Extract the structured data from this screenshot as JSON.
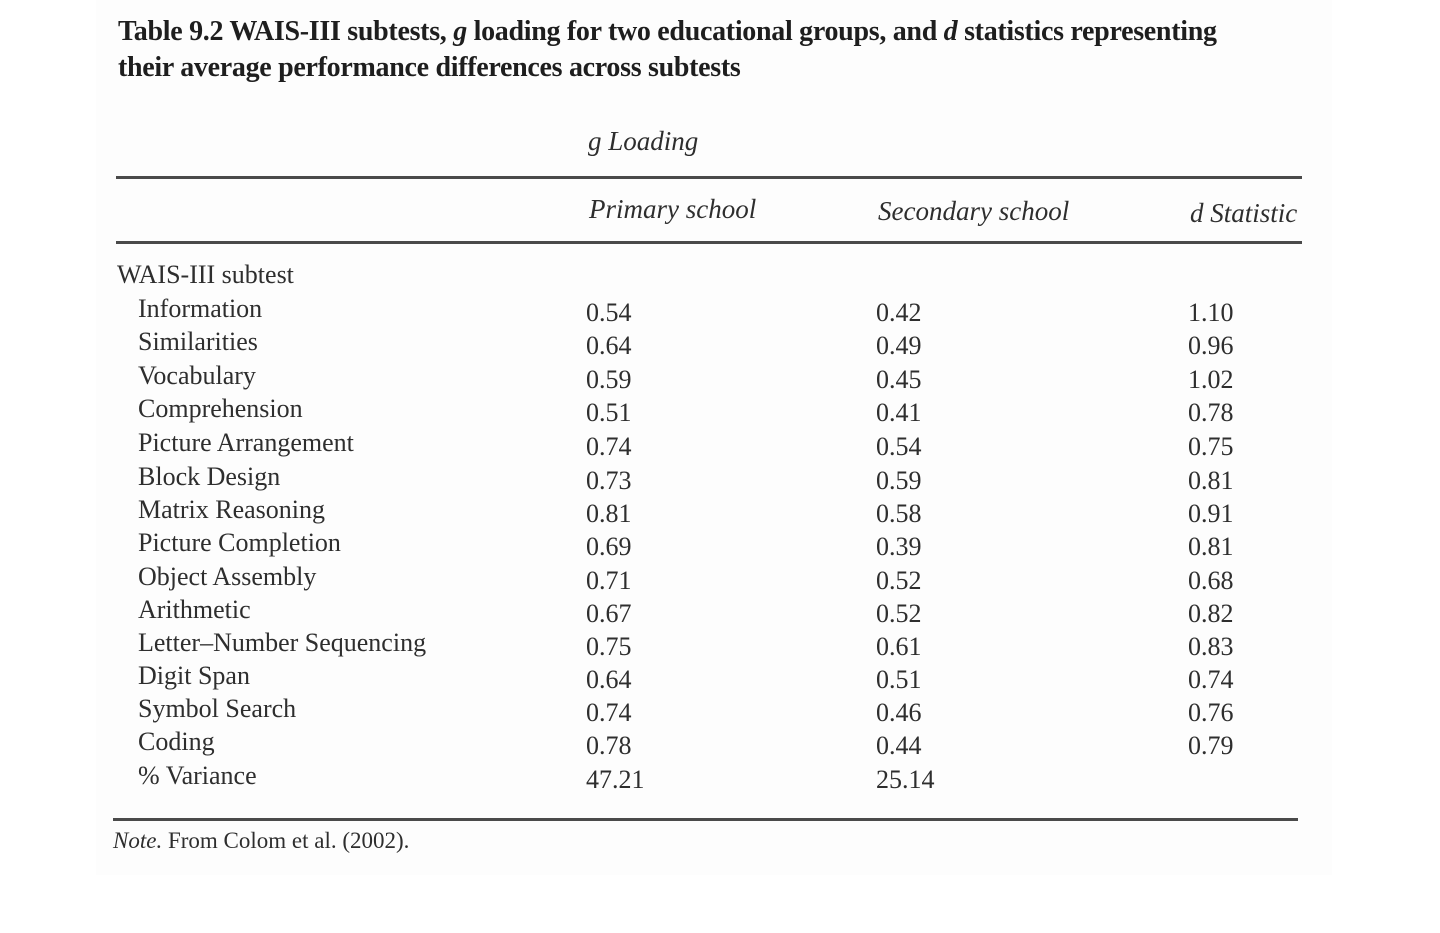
{
  "caption": {
    "prefix": "Table 9.2 WAIS-III subtests, ",
    "g": "g",
    "middle": " loading for two educational groups, and ",
    "d": "d",
    "suffix": " statistics representing their average performance differences across subtests"
  },
  "header": {
    "group_label": "g Loading",
    "col_primary": "Primary school",
    "col_secondary": "Secondary school",
    "col_d": "d Statistic"
  },
  "section_label": "WAIS-III subtest",
  "rows": [
    {
      "name": "Information",
      "primary": "0.54",
      "secondary": "0.42",
      "d": "1.10"
    },
    {
      "name": "Similarities",
      "primary": "0.64",
      "secondary": "0.49",
      "d": "0.96"
    },
    {
      "name": "Vocabulary",
      "primary": "0.59",
      "secondary": "0.45",
      "d": "1.02"
    },
    {
      "name": "Comprehension",
      "primary": "0.51",
      "secondary": "0.41",
      "d": "0.78"
    },
    {
      "name": "Picture Arrangement",
      "primary": "0.74",
      "secondary": "0.54",
      "d": "0.75"
    },
    {
      "name": "Block Design",
      "primary": "0.73",
      "secondary": "0.59",
      "d": "0.81"
    },
    {
      "name": "Matrix Reasoning",
      "primary": "0.81",
      "secondary": "0.58",
      "d": "0.91"
    },
    {
      "name": "Picture Completion",
      "primary": "0.69",
      "secondary": "0.39",
      "d": "0.81"
    },
    {
      "name": "Object Assembly",
      "primary": "0.71",
      "secondary": "0.52",
      "d": "0.68"
    },
    {
      "name": "Arithmetic",
      "primary": "0.67",
      "secondary": "0.52",
      "d": "0.82"
    },
    {
      "name": "Letter–Number Sequencing",
      "primary": "0.75",
      "secondary": "0.61",
      "d": "0.83"
    },
    {
      "name": "Digit Span",
      "primary": "0.64",
      "secondary": "0.51",
      "d": "0.74"
    },
    {
      "name": "Symbol Search",
      "primary": "0.74",
      "secondary": "0.46",
      "d": "0.76"
    },
    {
      "name": "Coding",
      "primary": "0.78",
      "secondary": "0.44",
      "d": "0.79"
    },
    {
      "name": "% Variance",
      "primary": "47.21",
      "secondary": "25.14",
      "d": ""
    }
  ],
  "note": {
    "label": "Note.",
    "text": " From Colom et al. (2002)."
  }
}
